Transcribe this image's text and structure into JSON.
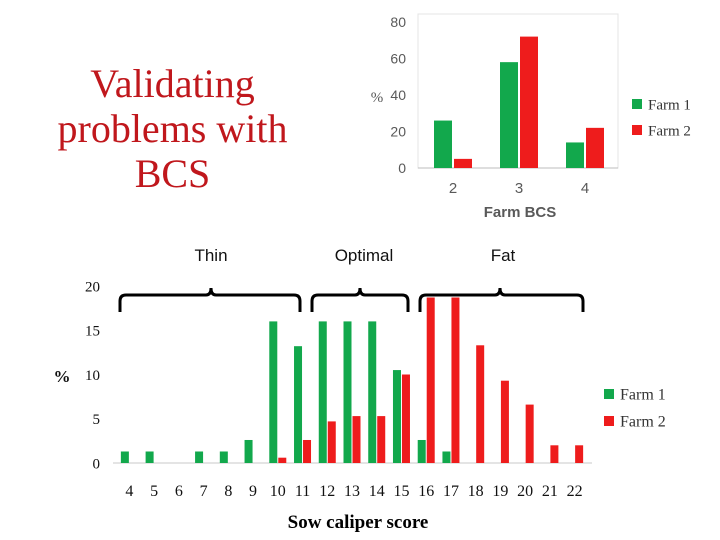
{
  "slide": {
    "title_lines": [
      "Validating",
      "problems with",
      "BCS"
    ],
    "category_labels": [
      "Thin",
      "Optimal",
      "Fat"
    ]
  },
  "colors": {
    "farm1": "#12a84c",
    "farm2": "#ee1c1c",
    "title": "#c0171c"
  },
  "chart_data": [
    {
      "type": "bar",
      "title": "",
      "categories": [
        "2",
        "3",
        "4"
      ],
      "xlabel": "Farm BCS",
      "ylabel": "%",
      "ylim": [
        0,
        80
      ],
      "yticks": [
        0,
        20,
        40,
        60,
        80
      ],
      "grid": false,
      "legend": "right",
      "series": [
        {
          "name": "Farm 1",
          "values": [
            26,
            58,
            14
          ]
        },
        {
          "name": "Farm 2",
          "values": [
            5,
            72,
            22
          ]
        }
      ]
    },
    {
      "type": "bar",
      "title": "",
      "categories": [
        "4",
        "5",
        "6",
        "7",
        "8",
        "9",
        "10",
        "11",
        "12",
        "13",
        "14",
        "15",
        "16",
        "17",
        "18",
        "19",
        "20",
        "21",
        "22"
      ],
      "xlabel": "Sow caliper score",
      "ylabel": "%",
      "ylim": [
        0,
        20
      ],
      "yticks": [
        0,
        5,
        10,
        15,
        20
      ],
      "grid": false,
      "legend": "right",
      "series": [
        {
          "name": "Farm 1",
          "values": [
            1.3,
            1.3,
            0,
            1.3,
            1.3,
            2.6,
            16,
            13.2,
            16,
            16,
            16,
            10.5,
            2.6,
            1.3,
            0,
            0,
            0,
            0,
            0
          ]
        },
        {
          "name": "Farm 2",
          "values": [
            0,
            0,
            0,
            0,
            0,
            0,
            0.6,
            2.6,
            4.7,
            5.3,
            5.3,
            10,
            18.7,
            18.7,
            13.3,
            9.3,
            6.6,
            2,
            2
          ]
        }
      ]
    }
  ]
}
